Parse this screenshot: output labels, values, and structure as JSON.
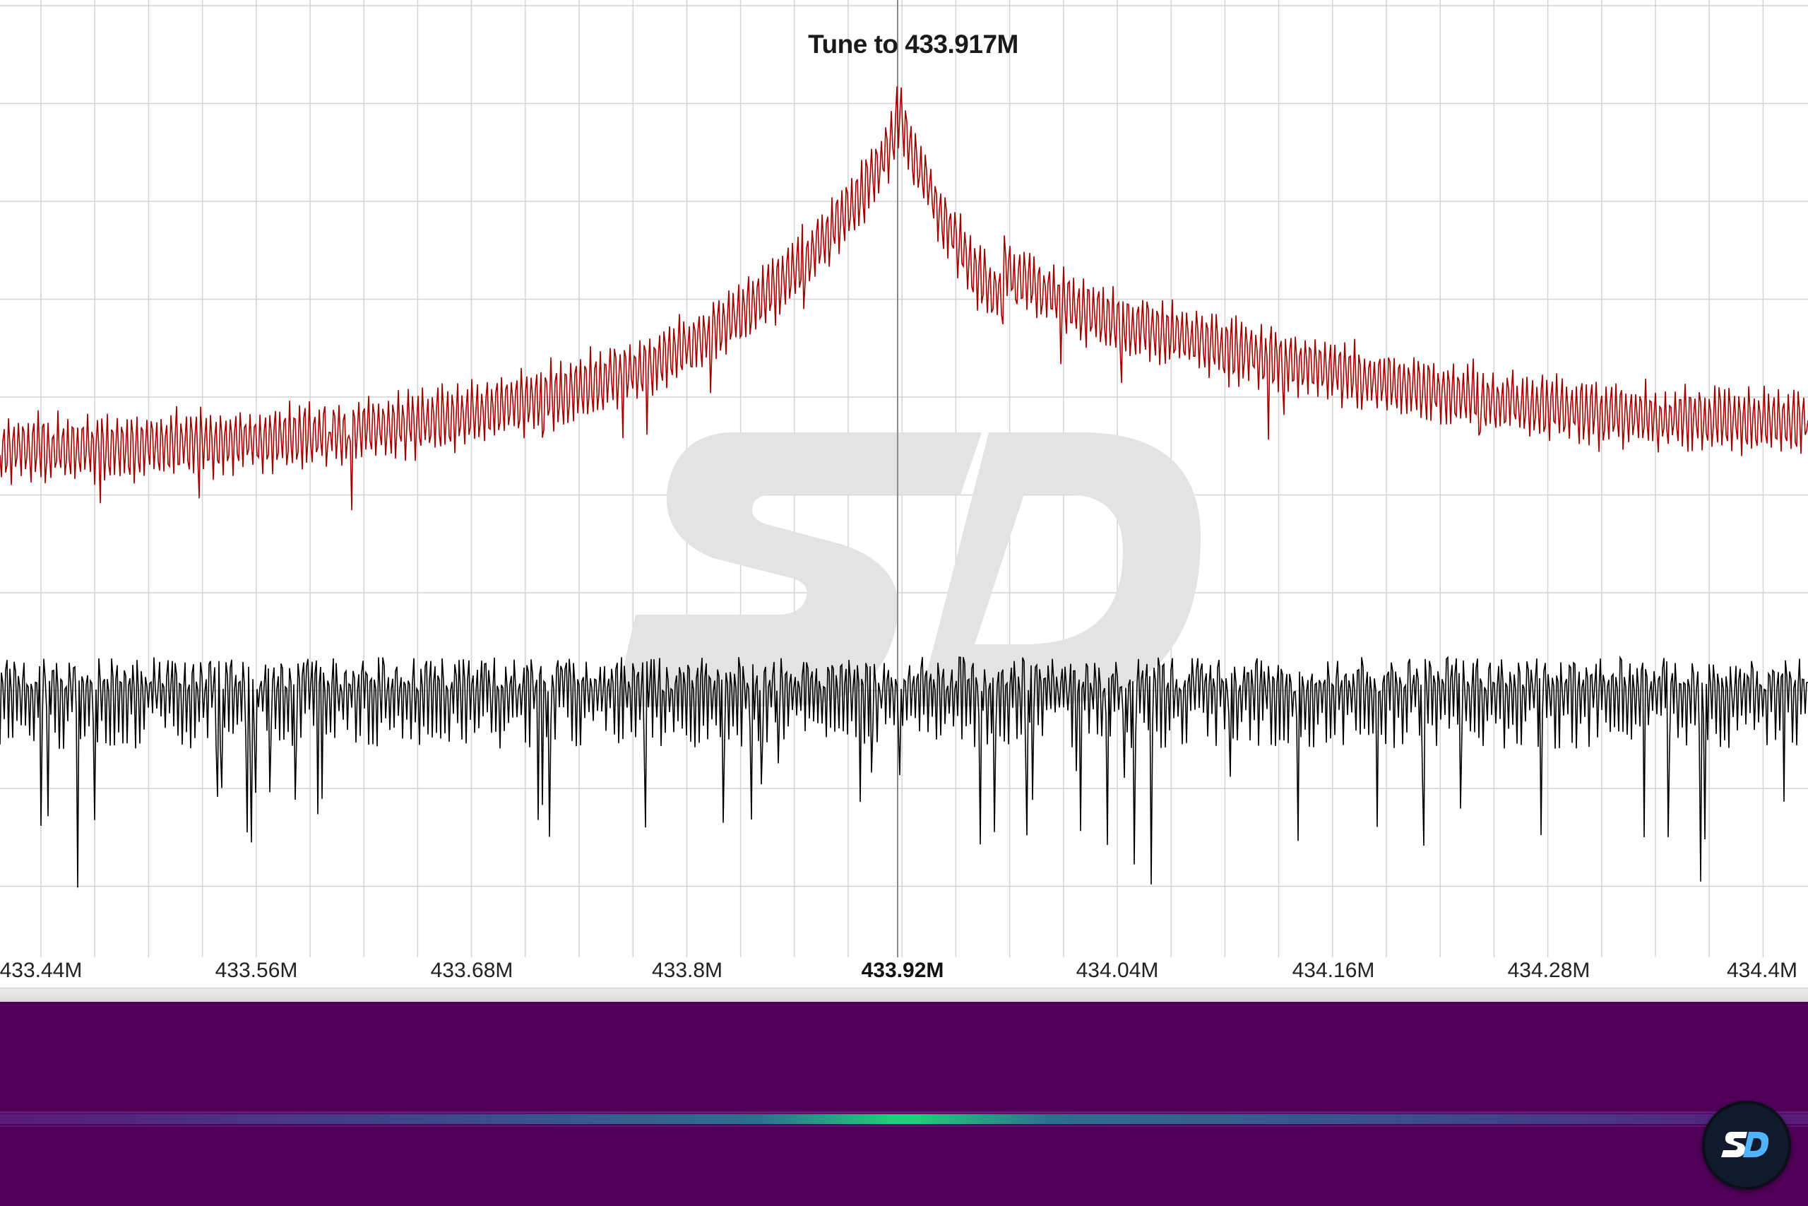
{
  "tooltip": {
    "text": "Tune to 433.917M"
  },
  "frequency_axis": {
    "labels": [
      "433.44M",
      "433.56M",
      "433.68M",
      "433.8M",
      "433.92M",
      "434.04M",
      "434.16M",
      "434.28M",
      "434.4M"
    ],
    "active_label": "433.92M"
  },
  "colors": {
    "spectrum_trace": "#a40000",
    "baseline_trace": "#000000",
    "grid": "#d4d4d4",
    "cursor": "#888888",
    "waterfall_background": "#510059",
    "waterfall_peak": "#1fd07a",
    "badge_background": "#111a2c",
    "badge_accent": "#4fb3ff"
  },
  "icons": {
    "watermark": "sd-logo-watermark",
    "badge": "sd-logo-badge"
  }
}
